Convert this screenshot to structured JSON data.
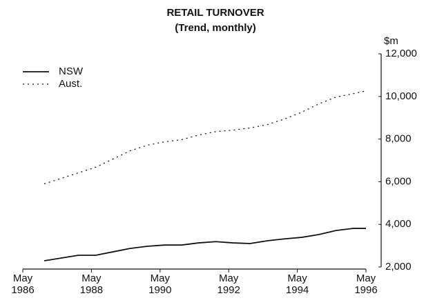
{
  "chart_data": {
    "type": "line",
    "title": "RETAIL TURNOVER",
    "subtitle": "(Trend, monthly)",
    "y_axis_label": "$m",
    "x": [
      1987.0,
      1987.5,
      1988.0,
      1988.5,
      1989.0,
      1989.5,
      1990.0,
      1990.5,
      1991.0,
      1991.5,
      1992.0,
      1992.5,
      1993.0,
      1993.5,
      1994.0,
      1994.5,
      1995.0,
      1995.5,
      1996.0,
      1996.375
    ],
    "series": [
      {
        "name": "NSW",
        "color": "#111111",
        "style": "solid",
        "values": [
          2290,
          2420,
          2550,
          2550,
          2710,
          2870,
          2970,
          3030,
          3030,
          3130,
          3190,
          3130,
          3100,
          3230,
          3320,
          3390,
          3520,
          3710,
          3810,
          3810
        ]
      },
      {
        "name": "Aust.",
        "color": "#111111",
        "style": "dotted",
        "values": [
          5900,
          6160,
          6420,
          6680,
          7060,
          7450,
          7710,
          7870,
          7970,
          8190,
          8350,
          8420,
          8520,
          8680,
          8940,
          9260,
          9650,
          9970,
          10130,
          10260
        ]
      }
    ],
    "xlim": [
      1986.375,
      1996.375
    ],
    "xticks": [
      {
        "value": 1986.375,
        "label": "May 1986"
      },
      {
        "value": 1988.375,
        "label": "May 1988"
      },
      {
        "value": 1990.375,
        "label": "May 1990"
      },
      {
        "value": 1992.375,
        "label": "May 1992"
      },
      {
        "value": 1994.375,
        "label": "May 1994"
      },
      {
        "value": 1996.375,
        "label": "May 1996"
      }
    ],
    "ylim": [
      2000,
      12000
    ],
    "yticks": [
      {
        "value": 2000,
        "label": "2,000"
      },
      {
        "value": 4000,
        "label": "4,000"
      },
      {
        "value": 6000,
        "label": "6,000"
      },
      {
        "value": 8000,
        "label": "8,000"
      },
      {
        "value": 10000,
        "label": "10,000"
      },
      {
        "value": 12000,
        "label": "12,000"
      }
    ],
    "y_axis_side": "right",
    "legend": "upper left",
    "grid": false
  }
}
